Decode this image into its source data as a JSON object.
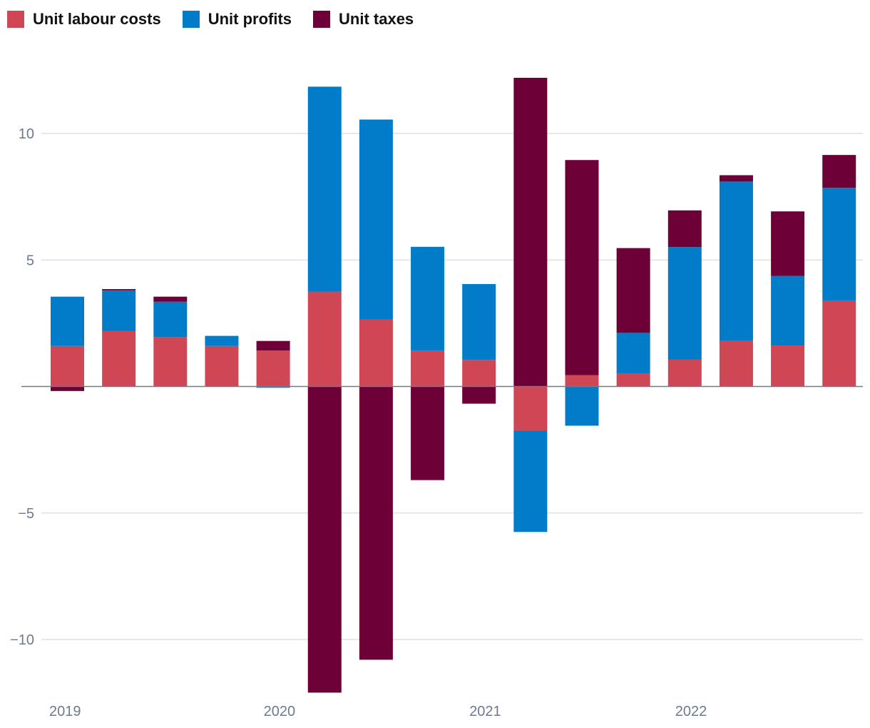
{
  "chart_data": {
    "type": "bar",
    "stacked": true,
    "title": "",
    "xlabel": "",
    "ylabel": "",
    "ylim": [
      -12,
      12
    ],
    "y_ticks": [
      10,
      5,
      -5,
      -10
    ],
    "y_tick_labels": [
      "10",
      "5",
      "−5",
      "−10"
    ],
    "x_tick_labels": [
      {
        "label": "2019",
        "index": 0
      },
      {
        "label": "2020",
        "index": 4
      },
      {
        "label": "2021",
        "index": 8
      },
      {
        "label": "2022",
        "index": 12
      }
    ],
    "legend_position": "top-left",
    "colors": {
      "Unit labour costs": "#cf4654",
      "Unit profits": "#007cc8",
      "Unit taxes": "#6c0037"
    },
    "series": [
      {
        "name": "Unit labour costs",
        "values": [
          1.6,
          2.2,
          1.95,
          1.6,
          1.42,
          3.75,
          2.65,
          1.42,
          1.05,
          -1.75,
          0.45,
          0.52,
          1.06,
          1.8,
          1.62,
          3.4
        ]
      },
      {
        "name": "Unit profits",
        "values": [
          1.95,
          1.6,
          1.4,
          0.4,
          -0.05,
          8.1,
          7.9,
          4.1,
          3.0,
          -4.0,
          -1.55,
          1.6,
          4.45,
          6.3,
          2.75,
          4.45
        ]
      },
      {
        "name": "Unit taxes",
        "values": [
          -0.18,
          0.05,
          0.2,
          0.0,
          0.38,
          -12.1,
          -10.8,
          -3.7,
          -0.68,
          12.2,
          8.5,
          3.35,
          1.45,
          0.25,
          2.55,
          1.3
        ]
      }
    ]
  }
}
